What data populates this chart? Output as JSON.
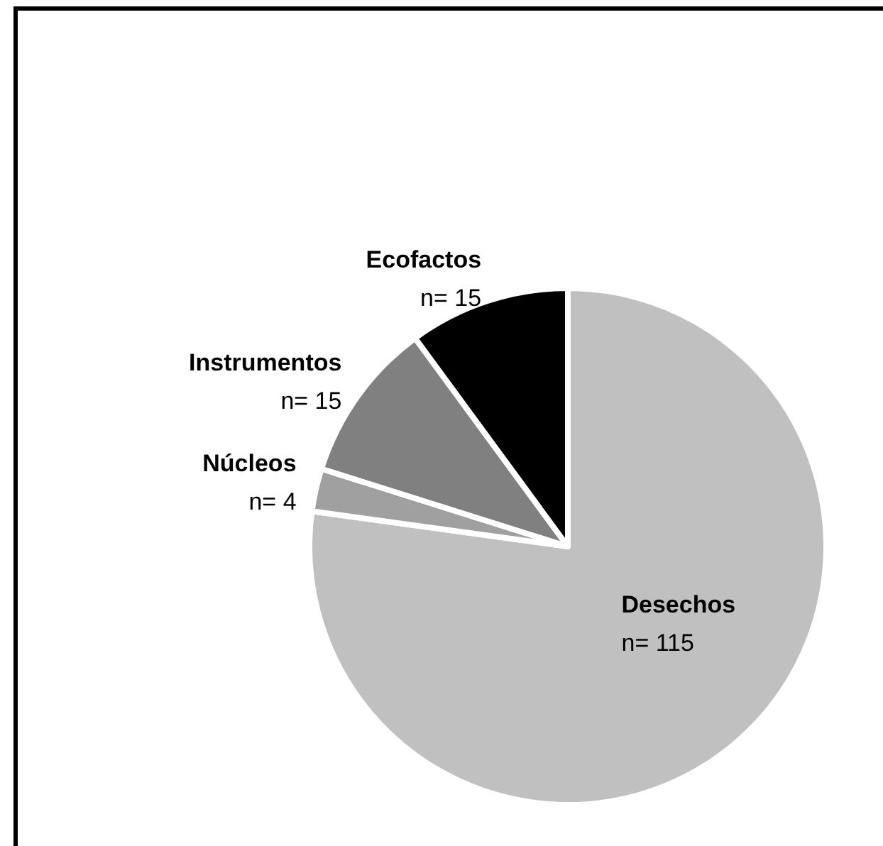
{
  "chart_data": {
    "type": "pie",
    "categories": [
      "Desechos",
      "Núcleos",
      "Instrumentos",
      "Ecofactos"
    ],
    "values": [
      115,
      4,
      15,
      15
    ],
    "colors": [
      "#c0c0c0",
      "#a0a0a0",
      "#808080",
      "#000000"
    ],
    "value_labels": [
      "n= 115",
      "n= 4",
      "n= 15",
      "n= 15"
    ]
  }
}
